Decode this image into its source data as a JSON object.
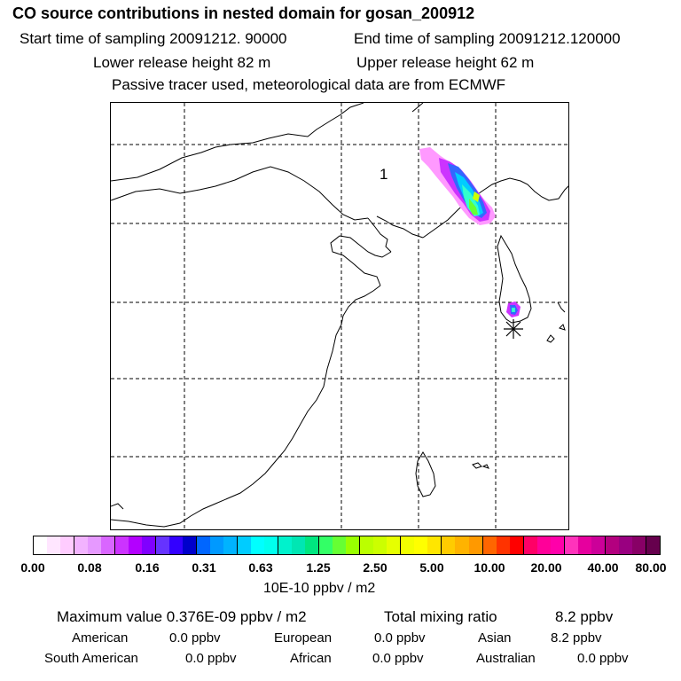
{
  "header": {
    "title": "CO  source contributions in nested domain for gosan_200912",
    "start_time": "Start time of sampling 20091212. 90000",
    "end_time": "End time of sampling 20091212.120000",
    "lower_release": "Lower release height   82 m",
    "upper_release": "Upper release height   62 m",
    "tracer_note": "Passive tracer used, meteorological data are from ECMWF"
  },
  "map": {
    "region_label": "1",
    "receptor_icon": "asterisk-receptor-icon",
    "plume_colors": [
      "#ff99ff",
      "#cc33ff",
      "#3366ff",
      "#00ccff",
      "#33ffcc",
      "#66ff33",
      "#ccff00"
    ]
  },
  "colorbar": {
    "tick_labels": [
      "0.00",
      "0.08",
      "0.16",
      "0.31",
      "0.63",
      "1.25",
      "2.50",
      "5.00",
      "10.00",
      "20.00",
      "40.00",
      "80.00"
    ],
    "units": "10E-10 ppbv / m2",
    "colors": [
      "#ffffff",
      "#ffe6ff",
      "#ffccff",
      "#f2b3ff",
      "#e699ff",
      "#d966ff",
      "#cc33ff",
      "#b300ff",
      "#8000ff",
      "#6633ff",
      "#3300ff",
      "#0000cc",
      "#0066ff",
      "#0099ff",
      "#00b3ff",
      "#00ccff",
      "#00ffff",
      "#00ffee",
      "#00f2cc",
      "#00e6b3",
      "#00e680",
      "#33ff66",
      "#66ff33",
      "#99ff00",
      "#bbff00",
      "#ccff00",
      "#e6ff00",
      "#f2ff00",
      "#ffff00",
      "#ffe600",
      "#ffcc00",
      "#ffb300",
      "#ff9900",
      "#ff6600",
      "#ff3300",
      "#ff0000",
      "#ff0066",
      "#ff0099",
      "#ff00aa",
      "#ff33bb",
      "#e6009e",
      "#cc0099",
      "#b3007f",
      "#990080",
      "#880066",
      "#66004d"
    ],
    "major_every": [
      0,
      3,
      6,
      9,
      12,
      15,
      18,
      21,
      24,
      27,
      30,
      33,
      36,
      39,
      42
    ]
  },
  "summary": {
    "maximum": "Maximum value  0.376E-09 ppbv / m2",
    "total_label": "Total mixing ratio",
    "total_value": "8.2 ppbv",
    "regions": [
      {
        "name": "American",
        "value": "0.0 ppbv"
      },
      {
        "name": "European",
        "value": "0.0 ppbv"
      },
      {
        "name": "Asian",
        "value": "8.2 ppbv"
      },
      {
        "name": "South American",
        "value": "0.0 ppbv"
      },
      {
        "name": "African",
        "value": "0.0 ppbv"
      },
      {
        "name": "Australian",
        "value": "0.0 ppbv"
      }
    ]
  }
}
